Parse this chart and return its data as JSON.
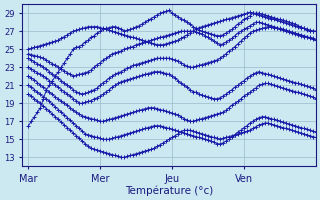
{
  "background_color": "#cce8f0",
  "plot_bg": "#cce8f0",
  "grid_color": "#99bbcc",
  "line_color": "#1a1aaa",
  "xlabel": "Température (°c)",
  "yticks": [
    13,
    15,
    17,
    19,
    21,
    23,
    25,
    27,
    29
  ],
  "xtick_labels": [
    "Mar",
    "Mer",
    "Jeu",
    "Ven"
  ],
  "xtick_positions": [
    0,
    24,
    48,
    72
  ],
  "xlim": [
    -2,
    96
  ],
  "ylim": [
    12,
    30
  ],
  "n_points": 97,
  "series": [
    [
      16.5,
      17.0,
      17.5,
      18.0,
      18.5,
      19.5,
      20.5,
      21.0,
      21.5,
      22.0,
      22.5,
      23.0,
      23.5,
      24.0,
      24.5,
      25.0,
      25.2,
      25.3,
      25.5,
      25.8,
      26.0,
      26.3,
      26.5,
      26.8,
      27.0,
      27.2,
      27.3,
      27.4,
      27.5,
      27.5,
      27.4,
      27.2,
      27.0,
      27.1,
      27.2,
      27.3,
      27.5,
      27.6,
      27.8,
      28.0,
      28.2,
      28.4,
      28.6,
      28.8,
      29.0,
      29.1,
      29.2,
      29.3,
      29.0,
      28.8,
      28.6,
      28.4,
      28.2,
      28.0,
      27.8,
      27.5,
      27.3,
      27.1,
      27.0,
      26.9,
      26.8,
      26.7,
      26.6,
      26.5,
      26.5,
      26.6,
      26.8,
      27.0,
      27.2,
      27.5,
      27.8,
      28.0,
      28.3,
      28.5,
      28.7,
      29.0,
      29.0,
      29.0,
      28.9,
      28.8,
      28.7,
      28.6,
      28.5,
      28.4,
      28.3,
      28.2,
      28.1,
      28.0,
      27.9,
      27.8,
      27.6,
      27.5,
      27.3,
      27.1,
      27.0,
      27.0,
      27.0
    ],
    [
      25.0,
      25.1,
      25.2,
      25.3,
      25.4,
      25.5,
      25.6,
      25.7,
      25.8,
      25.9,
      26.0,
      26.2,
      26.4,
      26.6,
      26.8,
      27.0,
      27.1,
      27.2,
      27.3,
      27.4,
      27.5,
      27.5,
      27.5,
      27.5,
      27.4,
      27.3,
      27.2,
      27.1,
      27.0,
      26.9,
      26.8,
      26.7,
      26.6,
      26.5,
      26.4,
      26.3,
      26.2,
      26.1,
      26.0,
      25.9,
      25.8,
      25.7,
      25.6,
      25.5,
      25.5,
      25.5,
      25.6,
      25.7,
      25.8,
      25.9,
      26.0,
      26.2,
      26.4,
      26.6,
      26.8,
      27.0,
      27.2,
      27.4,
      27.5,
      27.6,
      27.7,
      27.8,
      27.9,
      28.0,
      28.1,
      28.2,
      28.3,
      28.4,
      28.5,
      28.6,
      28.7,
      28.8,
      28.9,
      29.0,
      29.1,
      29.0,
      28.9,
      28.8,
      28.7,
      28.6,
      28.5,
      28.4,
      28.3,
      28.2,
      28.1,
      28.0,
      27.9,
      27.8,
      27.7,
      27.6,
      27.5,
      27.4,
      27.3,
      27.2,
      27.1,
      27.0,
      27.0
    ],
    [
      24.5,
      24.4,
      24.3,
      24.2,
      24.1,
      24.0,
      23.8,
      23.6,
      23.4,
      23.2,
      23.0,
      22.8,
      22.6,
      22.4,
      22.2,
      22.0,
      22.1,
      22.2,
      22.3,
      22.4,
      22.5,
      22.7,
      23.0,
      23.3,
      23.5,
      23.8,
      24.0,
      24.2,
      24.5,
      24.6,
      24.7,
      24.8,
      25.0,
      25.1,
      25.2,
      25.3,
      25.5,
      25.6,
      25.7,
      25.8,
      25.9,
      26.0,
      26.1,
      26.2,
      26.3,
      26.4,
      26.5,
      26.6,
      26.7,
      26.8,
      26.9,
      27.0,
      27.0,
      27.0,
      27.0,
      27.0,
      26.9,
      26.8,
      26.7,
      26.5,
      26.3,
      26.1,
      25.9,
      25.7,
      25.5,
      25.6,
      25.8,
      26.0,
      26.2,
      26.5,
      26.8,
      27.0,
      27.2,
      27.4,
      27.6,
      27.8,
      28.0,
      28.0,
      27.9,
      27.8,
      27.7,
      27.6,
      27.5,
      27.4,
      27.3,
      27.2,
      27.1,
      27.0,
      26.9,
      26.8,
      26.7,
      26.6,
      26.5,
      26.4,
      26.3,
      26.2,
      26.0
    ],
    [
      24.0,
      23.8,
      23.6,
      23.4,
      23.2,
      23.0,
      22.8,
      22.5,
      22.2,
      22.0,
      21.8,
      21.5,
      21.2,
      21.0,
      20.8,
      20.5,
      20.3,
      20.1,
      20.0,
      20.1,
      20.2,
      20.4,
      20.5,
      20.7,
      21.0,
      21.3,
      21.5,
      21.8,
      22.0,
      22.2,
      22.4,
      22.5,
      22.7,
      22.9,
      23.0,
      23.2,
      23.3,
      23.4,
      23.5,
      23.6,
      23.7,
      23.8,
      23.9,
      24.0,
      24.0,
      24.0,
      24.0,
      24.0,
      23.9,
      23.8,
      23.7,
      23.5,
      23.3,
      23.1,
      23.0,
      23.0,
      23.1,
      23.2,
      23.3,
      23.4,
      23.5,
      23.6,
      23.7,
      23.8,
      24.0,
      24.2,
      24.5,
      24.8,
      25.0,
      25.3,
      25.6,
      25.9,
      26.2,
      26.5,
      26.8,
      27.0,
      27.1,
      27.2,
      27.3,
      27.4,
      27.5,
      27.5,
      27.4,
      27.3,
      27.2,
      27.1,
      27.0,
      26.9,
      26.8,
      26.7,
      26.6,
      26.5,
      26.4,
      26.3,
      26.2,
      26.1,
      26.0
    ],
    [
      23.0,
      22.8,
      22.6,
      22.4,
      22.2,
      22.0,
      21.8,
      21.5,
      21.3,
      21.0,
      20.8,
      20.5,
      20.3,
      20.0,
      19.8,
      19.5,
      19.3,
      19.0,
      19.0,
      19.1,
      19.2,
      19.3,
      19.5,
      19.6,
      19.8,
      20.0,
      20.3,
      20.5,
      20.8,
      21.0,
      21.2,
      21.4,
      21.5,
      21.6,
      21.7,
      21.8,
      21.9,
      22.0,
      22.1,
      22.2,
      22.3,
      22.4,
      22.5,
      22.5,
      22.5,
      22.4,
      22.3,
      22.2,
      22.0,
      21.8,
      21.5,
      21.2,
      21.0,
      20.8,
      20.5,
      20.3,
      20.2,
      20.0,
      19.9,
      19.8,
      19.7,
      19.6,
      19.5,
      19.5,
      19.6,
      19.8,
      20.0,
      20.3,
      20.5,
      20.8,
      21.0,
      21.3,
      21.5,
      21.8,
      22.0,
      22.2,
      22.4,
      22.5,
      22.4,
      22.3,
      22.2,
      22.1,
      22.0,
      21.9,
      21.8,
      21.7,
      21.6,
      21.5,
      21.4,
      21.3,
      21.2,
      21.1,
      21.0,
      20.9,
      20.8,
      20.7,
      20.5
    ],
    [
      22.0,
      21.8,
      21.6,
      21.3,
      21.0,
      20.8,
      20.5,
      20.2,
      20.0,
      19.7,
      19.5,
      19.2,
      19.0,
      18.8,
      18.5,
      18.2,
      18.0,
      17.8,
      17.6,
      17.5,
      17.4,
      17.3,
      17.2,
      17.1,
      17.0,
      17.0,
      17.1,
      17.2,
      17.3,
      17.4,
      17.5,
      17.6,
      17.7,
      17.8,
      17.9,
      18.0,
      18.1,
      18.2,
      18.3,
      18.4,
      18.5,
      18.5,
      18.5,
      18.4,
      18.3,
      18.2,
      18.1,
      18.0,
      17.9,
      17.8,
      17.7,
      17.5,
      17.3,
      17.1,
      17.0,
      17.0,
      17.1,
      17.2,
      17.3,
      17.4,
      17.5,
      17.6,
      17.7,
      17.8,
      17.9,
      18.0,
      18.2,
      18.5,
      18.8,
      19.0,
      19.2,
      19.5,
      19.8,
      20.0,
      20.2,
      20.5,
      20.7,
      21.0,
      21.1,
      21.2,
      21.2,
      21.1,
      21.0,
      20.9,
      20.8,
      20.7,
      20.6,
      20.5,
      20.4,
      20.3,
      20.2,
      20.1,
      20.0,
      19.9,
      19.8,
      19.7,
      19.5
    ],
    [
      21.0,
      20.8,
      20.5,
      20.2,
      20.0,
      19.7,
      19.5,
      19.2,
      18.9,
      18.6,
      18.3,
      18.0,
      17.7,
      17.4,
      17.1,
      16.8,
      16.5,
      16.2,
      15.9,
      15.6,
      15.5,
      15.4,
      15.3,
      15.2,
      15.1,
      15.0,
      15.0,
      15.0,
      15.1,
      15.2,
      15.3,
      15.4,
      15.5,
      15.6,
      15.7,
      15.8,
      15.9,
      16.0,
      16.1,
      16.2,
      16.3,
      16.4,
      16.5,
      16.5,
      16.5,
      16.4,
      16.3,
      16.2,
      16.1,
      16.0,
      15.9,
      15.8,
      15.7,
      15.6,
      15.5,
      15.4,
      15.3,
      15.2,
      15.1,
      15.0,
      14.9,
      14.8,
      14.7,
      14.5,
      14.5,
      14.6,
      14.8,
      15.0,
      15.3,
      15.5,
      15.8,
      16.0,
      16.3,
      16.5,
      16.8,
      17.0,
      17.2,
      17.4,
      17.5,
      17.5,
      17.4,
      17.3,
      17.2,
      17.1,
      17.0,
      16.9,
      16.8,
      16.7,
      16.6,
      16.5,
      16.4,
      16.3,
      16.2,
      16.1,
      16.0,
      15.9,
      15.8
    ],
    [
      20.0,
      19.8,
      19.5,
      19.2,
      19.0,
      18.7,
      18.4,
      18.1,
      17.8,
      17.5,
      17.2,
      16.9,
      16.6,
      16.3,
      16.0,
      15.7,
      15.4,
      15.1,
      14.8,
      14.5,
      14.2,
      14.0,
      13.9,
      13.8,
      13.7,
      13.6,
      13.5,
      13.4,
      13.3,
      13.2,
      13.1,
      13.0,
      13.0,
      13.1,
      13.2,
      13.3,
      13.4,
      13.5,
      13.6,
      13.7,
      13.8,
      13.9,
      14.0,
      14.2,
      14.4,
      14.6,
      14.8,
      15.0,
      15.2,
      15.4,
      15.6,
      15.8,
      16.0,
      16.0,
      16.0,
      15.9,
      15.8,
      15.7,
      15.6,
      15.5,
      15.4,
      15.3,
      15.2,
      15.1,
      15.0,
      15.1,
      15.2,
      15.3,
      15.4,
      15.5,
      15.6,
      15.7,
      15.8,
      15.9,
      16.0,
      16.2,
      16.4,
      16.6,
      16.7,
      16.8,
      16.8,
      16.7,
      16.6,
      16.5,
      16.4,
      16.3,
      16.2,
      16.1,
      16.0,
      15.9,
      15.8,
      15.7,
      15.6,
      15.5,
      15.4,
      15.3,
      15.2
    ]
  ]
}
